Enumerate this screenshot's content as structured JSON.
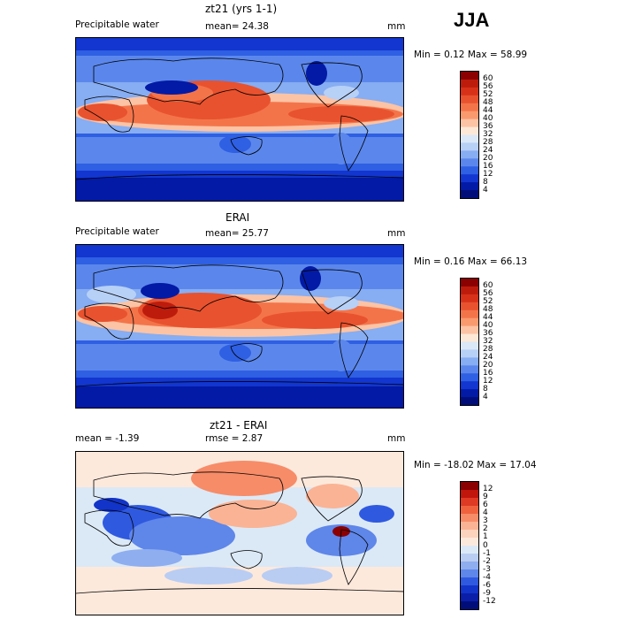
{
  "season": "JJA",
  "panels": [
    {
      "title": "zt21 (yrs 1-1)",
      "field_label": "Precipitable water",
      "stat1": "mean=   24.38",
      "stat2": "",
      "units": "mm",
      "minmax": "Min =    0.12 Max =   58.99",
      "levels": [
        "60",
        "56",
        "52",
        "48",
        "44",
        "40",
        "36",
        "32",
        "28",
        "24",
        "20",
        "16",
        "12",
        "8",
        "4"
      ],
      "colors": [
        "#8b0000",
        "#bd1c0c",
        "#d73219",
        "#e8522e",
        "#f4744a",
        "#f99a6e",
        "#fcc3a4",
        "#fde8d7",
        "#dbe8f8",
        "#b7d0f6",
        "#87adf2",
        "#5b87ec",
        "#2f5fe3",
        "#1236cf",
        "#031aa6",
        "#010e7a"
      ]
    },
    {
      "title": "ERAI",
      "field_label": "Precipitable water",
      "stat1": "mean=   25.77",
      "stat2": "",
      "units": "mm",
      "minmax": "Min =    0.16 Max =   66.13",
      "levels": [
        "60",
        "56",
        "52",
        "48",
        "44",
        "40",
        "36",
        "32",
        "28",
        "24",
        "20",
        "16",
        "12",
        "8",
        "4"
      ],
      "colors": [
        "#8b0000",
        "#bd1c0c",
        "#d73219",
        "#e8522e",
        "#f4744a",
        "#f99a6e",
        "#fcc3a4",
        "#fde8d7",
        "#dbe8f8",
        "#b7d0f6",
        "#87adf2",
        "#5b87ec",
        "#2f5fe3",
        "#1236cf",
        "#031aa6",
        "#010e7a"
      ]
    },
    {
      "title": "zt21 - ERAI",
      "field_label": "",
      "stat1": "mean =   -1.39",
      "stat2": "rmse =    2.87",
      "units": "mm",
      "minmax": "Min = -18.02 Max =   17.04",
      "levels": [
        "12",
        "9",
        "6",
        "4",
        "3",
        "2",
        "1",
        "0",
        "-1",
        "-2",
        "-3",
        "-4",
        "-6",
        "-9",
        "-12"
      ],
      "colors": [
        "#8b0000",
        "#c0160c",
        "#de3a24",
        "#f0623e",
        "#f78c68",
        "#fab394",
        "#fcd3bd",
        "#fde9dc",
        "#dbe9f7",
        "#b9cdf3",
        "#8eaef0",
        "#5f86e9",
        "#2f59df",
        "#1234c8",
        "#0a1ea8",
        "#010e7a"
      ]
    }
  ]
}
